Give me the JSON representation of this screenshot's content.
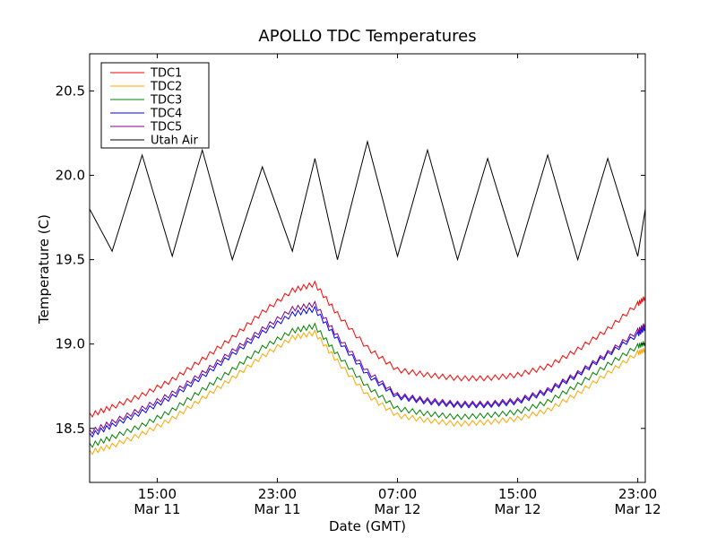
{
  "chart_data": {
    "type": "line",
    "title": "APOLLO TDC Temperatures",
    "xlabel": "Date (GMT)",
    "ylabel": "Temperature (C)",
    "x_units": "hours since 2011-03-11 00:00 GMT",
    "xlim": [
      10.5,
      47.5
    ],
    "ylim": [
      18.18,
      20.72
    ],
    "yticks": [
      18.5,
      19.0,
      19.5,
      20.0,
      20.5
    ],
    "ytick_labels": [
      "18.5",
      "19.0",
      "19.5",
      "20.0",
      "20.5"
    ],
    "xticks": [
      15,
      23,
      31,
      39,
      47
    ],
    "xtick_labels": [
      [
        "15:00",
        "Mar 11"
      ],
      [
        "23:00",
        "Mar 11"
      ],
      [
        "07:00",
        "Mar 12"
      ],
      [
        "15:00",
        "Mar 12"
      ],
      [
        "23:00",
        "Mar 12"
      ]
    ],
    "legend_location": "upper-left",
    "x": [
      10.5,
      12,
      14,
      16,
      18,
      20,
      22,
      24,
      25.5,
      27,
      29,
      31,
      33,
      35,
      37,
      39,
      41,
      43,
      45,
      47,
      47.5
    ],
    "series": [
      {
        "name": "TDC1",
        "color": "#ff0000",
        "values": [
          18.58,
          18.63,
          18.7,
          18.79,
          18.91,
          19.04,
          19.19,
          19.32,
          19.36,
          19.18,
          18.98,
          18.85,
          18.82,
          18.8,
          18.8,
          18.82,
          18.87,
          18.97,
          19.09,
          19.24,
          19.28
        ]
      },
      {
        "name": "TDC2",
        "color": "#ffa500",
        "values": [
          18.36,
          18.4,
          18.47,
          18.56,
          18.68,
          18.8,
          18.93,
          19.04,
          19.07,
          18.9,
          18.7,
          18.58,
          18.55,
          18.53,
          18.54,
          18.56,
          18.61,
          18.71,
          18.83,
          18.95,
          18.97
        ]
      },
      {
        "name": "TDC3",
        "color": "#008000",
        "values": [
          18.4,
          18.45,
          18.52,
          18.61,
          18.73,
          18.85,
          18.98,
          19.08,
          19.11,
          18.94,
          18.75,
          18.62,
          18.59,
          18.57,
          18.58,
          18.6,
          18.66,
          18.76,
          18.88,
          18.99,
          19.01
        ]
      },
      {
        "name": "TDC4",
        "color": "#0000ff",
        "values": [
          18.46,
          18.52,
          18.6,
          18.69,
          18.81,
          18.94,
          19.07,
          19.18,
          19.21,
          19.03,
          18.82,
          18.69,
          18.66,
          18.64,
          18.64,
          18.66,
          18.72,
          18.82,
          18.94,
          19.06,
          19.1
        ]
      },
      {
        "name": "TDC5",
        "color": "#800080",
        "values": [
          18.48,
          18.54,
          18.62,
          18.71,
          18.83,
          18.96,
          19.09,
          19.21,
          19.24,
          19.05,
          18.84,
          18.7,
          18.67,
          18.65,
          18.65,
          18.67,
          18.73,
          18.83,
          18.95,
          19.08,
          19.12
        ]
      },
      {
        "name": "Utah Air",
        "color": "#000000",
        "values": [
          19.8,
          19.55,
          20.12,
          19.52,
          20.15,
          19.5,
          20.05,
          19.55,
          20.1,
          19.5,
          20.2,
          19.52,
          20.15,
          19.5,
          20.1,
          19.52,
          20.12,
          19.5,
          20.1,
          19.52,
          19.8
        ]
      }
    ]
  }
}
